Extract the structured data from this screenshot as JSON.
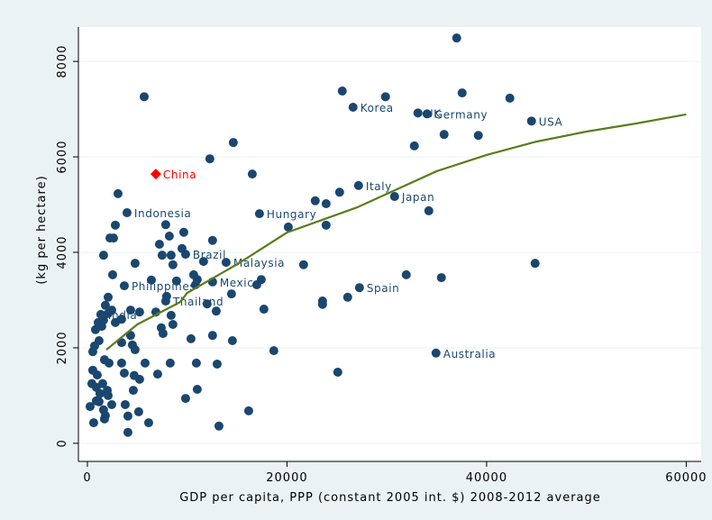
{
  "chart_data": {
    "type": "scatter",
    "x_label": "GDP per capita, PPP (constant 2005 int. $) 2008-2012 average",
    "y_label": "(kg per hectare)",
    "xlim": [
      -900,
      61500
    ],
    "ylim": [
      -380,
      8720
    ],
    "xticks": [
      0,
      20000,
      40000,
      60000
    ],
    "yticks": [
      0,
      2000,
      4000,
      6000,
      8000
    ],
    "grid": true,
    "series": [
      {
        "color": "#1a476f",
        "marker": "circle",
        "labels": [
          "Indonesia",
          "Korea",
          "UK",
          "Germany",
          "USA",
          "Italy",
          "Japan",
          "Hungary",
          "Brazil",
          "Malaysia",
          "Philippines",
          "Mexico",
          "Thailand",
          "India",
          "Spain",
          "Australia"
        ],
        "x": [
          3970,
          26620,
          33120,
          34030,
          44500,
          27170,
          30780,
          17240,
          9840,
          13900,
          3700,
          12540,
          7850,
          1350,
          27260,
          34930
        ],
        "values": [
          4830,
          7040,
          6920,
          6900,
          6750,
          5400,
          5170,
          4810,
          3960,
          3790,
          3300,
          3380,
          2980,
          2700,
          3260,
          1890
        ]
      },
      {
        "color": "#1a476f",
        "marker": "circle",
        "x": [
          37000,
          5690,
          25540,
          29870,
          37550,
          42330,
          14620,
          12270,
          35740,
          39170,
          32760,
          16520,
          3070,
          25270,
          22830,
          23920,
          2800,
          7850,
          34210,
          20130,
          23920,
          9660,
          8210,
          2620,
          2260,
          12540,
          7220,
          9480,
          1620,
          7490,
          8390,
          4780,
          11640,
          21660,
          44860,
          2530,
          8570,
          31950,
          35470,
          10650,
          11010,
          17420,
          6410,
          8930,
          10830,
          16970,
          14440,
          7940,
          26080,
          23560,
          23560,
          12000,
          17690,
          12910,
          2080,
          1800,
          2440,
          2800,
          5230,
          4330,
          6860,
          8390,
          7400,
          7580,
          8570,
          810,
          1080,
          1440,
          1620,
          2080,
          3430,
          3430,
          4330,
          4510,
          4780,
          720,
          1170,
          540,
          10380,
          12540,
          14530,
          18680,
          1710,
          2170,
          3430,
          5780,
          8300,
          10920,
          13000,
          25090,
          540,
          990,
          3700,
          4690,
          7040,
          5230,
          450,
          1530,
          900,
          1990,
          1260,
          2080,
          4600,
          11010,
          9840,
          900,
          270,
          3790,
          2440,
          1620,
          16160,
          5140,
          1800,
          4060,
          630,
          6140,
          13180,
          4060,
          1710,
          1170
        ],
        "values": [
          8490,
          7260,
          7380,
          7260,
          7340,
          7230,
          6300,
          5960,
          6470,
          6450,
          6230,
          5640,
          5230,
          5260,
          5080,
          5020,
          4570,
          4580,
          4870,
          4530,
          4570,
          4420,
          4340,
          4300,
          4300,
          4250,
          4170,
          4080,
          3940,
          3940,
          3940,
          3770,
          3810,
          3740,
          3770,
          3530,
          3740,
          3530,
          3470,
          3530,
          3430,
          3430,
          3420,
          3400,
          3320,
          3320,
          3130,
          3080,
          3060,
          2980,
          2910,
          2920,
          2810,
          2770,
          3060,
          2890,
          2790,
          2530,
          2750,
          2790,
          2750,
          2680,
          2420,
          2300,
          2490,
          2380,
          2530,
          2450,
          2580,
          2720,
          2600,
          2110,
          2260,
          2060,
          1960,
          2040,
          2150,
          1920,
          2190,
          2260,
          2150,
          1940,
          1750,
          1680,
          1680,
          1680,
          1680,
          1680,
          1660,
          1490,
          1530,
          1430,
          1470,
          1420,
          1450,
          1340,
          1250,
          1250,
          1170,
          1110,
          1040,
          1000,
          1110,
          1130,
          940,
          890,
          770,
          810,
          810,
          700,
          680,
          660,
          580,
          570,
          430,
          430,
          360,
          230,
          510,
          870
        ]
      },
      {
        "color": "#ff0000",
        "marker": "diamond",
        "labels": [
          "China"
        ],
        "x": [
          6860
        ],
        "values": [
          5640
        ]
      },
      {
        "color": "#5a7d1a",
        "marker": "line",
        "x": [
          1900,
          5000,
          9300,
          10000,
          15000,
          20000,
          27000,
          35000,
          40000,
          45000,
          50000,
          55000,
          60000
        ],
        "values": [
          1960,
          2490,
          2960,
          3150,
          3750,
          4415,
          4940,
          5700,
          6040,
          6320,
          6530,
          6700,
          6890
        ]
      }
    ]
  }
}
